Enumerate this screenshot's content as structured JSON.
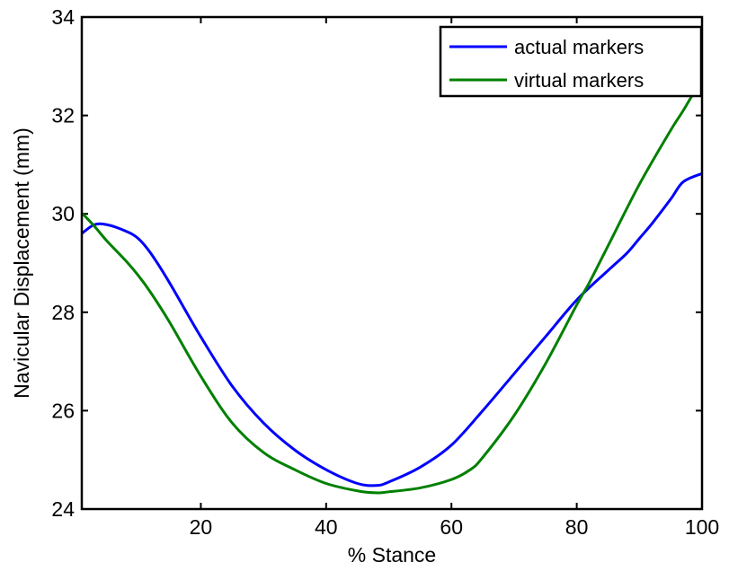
{
  "chart_data": {
    "type": "line",
    "title": "",
    "xlabel": "% Stance",
    "ylabel": "Navicular Displacement (mm)",
    "xlim": [
      1,
      100
    ],
    "ylim": [
      24,
      34
    ],
    "xticks": [
      20,
      40,
      60,
      80,
      100
    ],
    "yticks": [
      24,
      26,
      28,
      30,
      32,
      34
    ],
    "xtick_labels": [
      "20",
      "40",
      "60",
      "80",
      "100"
    ],
    "ytick_labels": [
      "24",
      "26",
      "28",
      "30",
      "32",
      "34"
    ],
    "grid": false,
    "legend_position": "top-right",
    "series": [
      {
        "name": "actual markers",
        "color": "#0000ff",
        "x": [
          1,
          3,
          5,
          8,
          10,
          12,
          15,
          20,
          25,
          30,
          35,
          40,
          45,
          48,
          50,
          55,
          60,
          65,
          70,
          75,
          80,
          85,
          88,
          90,
          92,
          95,
          97,
          100
        ],
        "y": [
          29.6,
          29.78,
          29.78,
          29.65,
          29.5,
          29.2,
          28.6,
          27.5,
          26.5,
          25.75,
          25.2,
          24.8,
          24.52,
          24.48,
          24.55,
          24.85,
          25.3,
          26.0,
          26.75,
          27.5,
          28.25,
          28.85,
          29.2,
          29.5,
          29.8,
          30.3,
          30.65,
          30.82
        ]
      },
      {
        "name": "virtual markers",
        "color": "#008000",
        "x": [
          1,
          3,
          5,
          8,
          10,
          12,
          15,
          20,
          25,
          30,
          35,
          40,
          45,
          48,
          50,
          55,
          60,
          63,
          65,
          70,
          75,
          80,
          82,
          85,
          90,
          95,
          97,
          100
        ],
        "y": [
          30.02,
          29.75,
          29.45,
          29.05,
          28.75,
          28.4,
          27.8,
          26.7,
          25.75,
          25.15,
          24.8,
          24.52,
          24.37,
          24.33,
          24.35,
          24.43,
          24.6,
          24.8,
          25.05,
          25.9,
          26.95,
          28.15,
          28.6,
          29.35,
          30.6,
          31.7,
          32.1,
          32.75
        ]
      }
    ]
  }
}
